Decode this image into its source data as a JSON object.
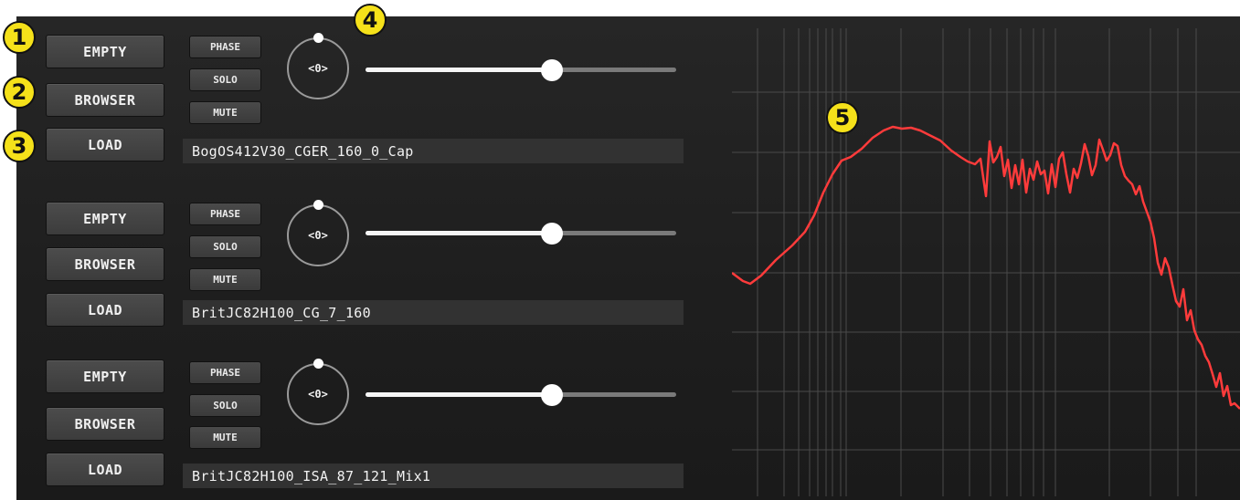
{
  "slots": [
    {
      "empty_label": "EMPTY",
      "browser_label": "BROWSER",
      "load_label": "LOAD",
      "phase_label": "PHASE",
      "solo_label": "SOLO",
      "mute_label": "MUTE",
      "knob_value": "<0>",
      "slider_level": 0.6,
      "ir_name": "BogOS412V30_CGER_160_0_Cap"
    },
    {
      "empty_label": "EMPTY",
      "browser_label": "BROWSER",
      "load_label": "LOAD",
      "phase_label": "PHASE",
      "solo_label": "SOLO",
      "mute_label": "MUTE",
      "knob_value": "<0>",
      "slider_level": 0.6,
      "ir_name": "BritJC82H100_CG_7_160"
    },
    {
      "empty_label": "EMPTY",
      "browser_label": "BROWSER",
      "load_label": "LOAD",
      "phase_label": "PHASE",
      "solo_label": "SOLO",
      "mute_label": "MUTE",
      "knob_value": "<0>",
      "slider_level": 0.6,
      "ir_name": "BritJC82H100_ISA_87_121_Mix1"
    }
  ],
  "callouts": [
    "1",
    "2",
    "3",
    "4",
    "5"
  ],
  "colors": {
    "curve": "#ff3b3b",
    "badge": "#f5e11a",
    "panel": "#222222"
  }
}
